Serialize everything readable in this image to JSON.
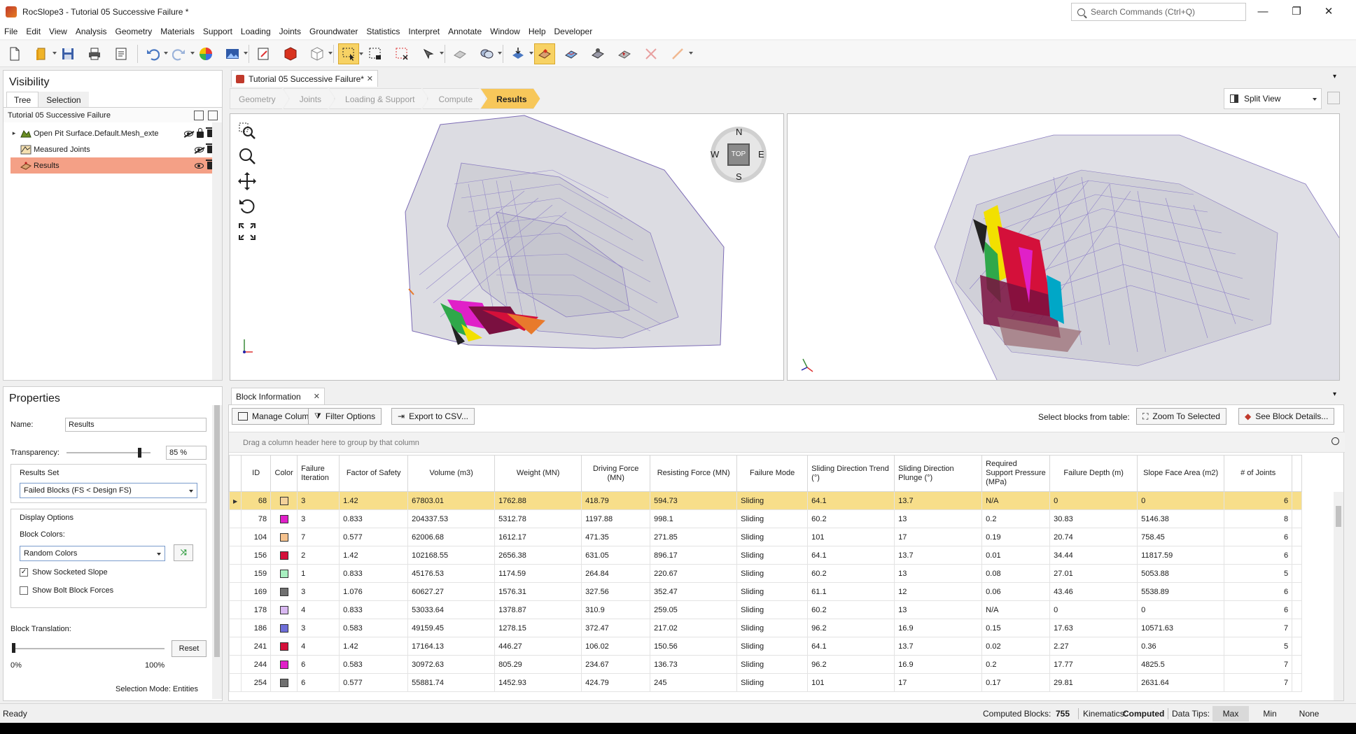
{
  "window": {
    "title": "RocSlope3 - Tutorial 05 Successive Failure *",
    "search_placeholder": "Search Commands (Ctrl+Q)",
    "controls": [
      "—",
      "❐",
      "✕"
    ]
  },
  "menu": [
    "File",
    "Edit",
    "View",
    "Analysis",
    "Geometry",
    "Materials",
    "Support",
    "Loading",
    "Joints",
    "Groundwater",
    "Statistics",
    "Interpret",
    "Annotate",
    "Window",
    "Help",
    "Developer"
  ],
  "toolbar_icons": [
    "new-file-icon",
    "open-folder-icon",
    "save-icon",
    "print-icon",
    "report-icon",
    "undo-icon",
    "redo-icon",
    "color-wheel-icon",
    "image-export-icon",
    "select-tool-icon",
    "block-view-icon",
    "wireframe-icon",
    "select-region-icon",
    "lock-select-icon",
    "deselect-icon",
    "pick-icon",
    "surface-icon",
    "joint-planes-icon",
    "import-icon",
    "block-results-icon",
    "stereonet-icon",
    "analysis-icon",
    "failure-icon",
    "delete-icon",
    "measure-icon"
  ],
  "visibility": {
    "title": "Visibility",
    "tabs": [
      "Tree",
      "Selection"
    ],
    "root": "Tutorial 05 Successive Failure",
    "items": [
      {
        "label": "Open Pit Surface.Default.Mesh_exte",
        "visible": false,
        "locked": true,
        "selected": false
      },
      {
        "label": "Measured Joints",
        "visible": false,
        "locked": false,
        "selected": false
      },
      {
        "label": "Results",
        "visible": true,
        "locked": false,
        "selected": true
      }
    ]
  },
  "properties": {
    "title": "Properties",
    "name_label": "Name:",
    "name_value": "Results",
    "transparency_label": "Transparency:",
    "transparency_value": "85 %",
    "transparency_fraction": 0.85,
    "results_set_label": "Results Set",
    "results_set_value": "Failed Blocks (FS < Design FS)",
    "display_options_label": "Display Options",
    "block_colors_label": "Block Colors:",
    "block_colors_value": "Random Colors",
    "show_socketed_slope": "Show Socketed Slope",
    "show_socketed_slope_checked": true,
    "show_bolt_forces": "Show Bolt Block Forces",
    "show_bolt_forces_checked": false,
    "block_translation_label": "Block Translation:",
    "reset_label": "Reset",
    "min_label": "0%",
    "max_label": "100%",
    "selection_mode": "Selection Mode:  Entities"
  },
  "document": {
    "tab_title": "Tutorial 05 Successive Failure*",
    "workflow": [
      "Geometry",
      "Joints",
      "Loading & Support",
      "Compute",
      "Results"
    ],
    "active_step": "Results",
    "view_mode": "Split View"
  },
  "compass": {
    "n": "N",
    "s": "S",
    "e": "E",
    "w": "W",
    "center": "TOP"
  },
  "block_info": {
    "tab_title": "Block Information",
    "buttons": {
      "manage_columns": "Manage Columns",
      "filter_options": "Filter Options",
      "export_csv": "Export to CSV...",
      "zoom_selected": "Zoom To Selected",
      "see_details": "See Block Details..."
    },
    "select_label": "Select blocks from table:",
    "group_hint": "Drag a column header here to group by that column",
    "columns": [
      "ID",
      "Color",
      "Failure Iteration",
      "Factor of Safety",
      "Volume (m3)",
      "Weight (MN)",
      "Driving Force (MN)",
      "Resisting Force (MN)",
      "Failure Mode",
      "Sliding Direction Trend (°)",
      "Sliding Direction Plunge (°)",
      "Required Support Pressure (MPa)",
      "Failure Depth (m)",
      "Slope Face Area (m2)",
      "# of Joints"
    ],
    "rows": [
      {
        "id": "68",
        "color": "#f3d19a",
        "iter": "3",
        "fs": "1.42",
        "volume": "67803.01",
        "weight": "1762.88",
        "driving": "418.79",
        "resisting": "594.73",
        "mode": "Sliding",
        "trend": "64.1",
        "plunge": "13.7",
        "pressure": "N/A",
        "depth": "0",
        "area": "0",
        "joints": "6"
      },
      {
        "id": "78",
        "color": "#e020c8",
        "iter": "3",
        "fs": "0.833",
        "volume": "204337.53",
        "weight": "5312.78",
        "driving": "1197.88",
        "resisting": "998.1",
        "mode": "Sliding",
        "trend": "60.2",
        "plunge": "13",
        "pressure": "0.2",
        "depth": "30.83",
        "area": "5146.38",
        "joints": "8"
      },
      {
        "id": "104",
        "color": "#f5c28e",
        "iter": "7",
        "fs": "0.577",
        "volume": "62006.68",
        "weight": "1612.17",
        "driving": "471.35",
        "resisting": "271.85",
        "mode": "Sliding",
        "trend": "101",
        "plunge": "17",
        "pressure": "0.19",
        "depth": "20.74",
        "area": "758.45",
        "joints": "6"
      },
      {
        "id": "156",
        "color": "#d4103a",
        "iter": "2",
        "fs": "1.42",
        "volume": "102168.55",
        "weight": "2656.38",
        "driving": "631.05",
        "resisting": "896.17",
        "mode": "Sliding",
        "trend": "64.1",
        "plunge": "13.7",
        "pressure": "0.01",
        "depth": "34.44",
        "area": "11817.59",
        "joints": "6"
      },
      {
        "id": "159",
        "color": "#a8f0c0",
        "iter": "1",
        "fs": "0.833",
        "volume": "45176.53",
        "weight": "1174.59",
        "driving": "264.84",
        "resisting": "220.67",
        "mode": "Sliding",
        "trend": "60.2",
        "plunge": "13",
        "pressure": "0.08",
        "depth": "27.01",
        "area": "5053.88",
        "joints": "5"
      },
      {
        "id": "169",
        "color": "#707070",
        "iter": "3",
        "fs": "1.076",
        "volume": "60627.27",
        "weight": "1576.31",
        "driving": "327.56",
        "resisting": "352.47",
        "mode": "Sliding",
        "trend": "61.1",
        "plunge": "12",
        "pressure": "0.06",
        "depth": "43.46",
        "area": "5538.89",
        "joints": "6"
      },
      {
        "id": "178",
        "color": "#d9b8f2",
        "iter": "4",
        "fs": "0.833",
        "volume": "53033.64",
        "weight": "1378.87",
        "driving": "310.9",
        "resisting": "259.05",
        "mode": "Sliding",
        "trend": "60.2",
        "plunge": "13",
        "pressure": "N/A",
        "depth": "0",
        "area": "0",
        "joints": "6"
      },
      {
        "id": "186",
        "color": "#6e6ed8",
        "iter": "3",
        "fs": "0.583",
        "volume": "49159.45",
        "weight": "1278.15",
        "driving": "372.47",
        "resisting": "217.02",
        "mode": "Sliding",
        "trend": "96.2",
        "plunge": "16.9",
        "pressure": "0.15",
        "depth": "17.63",
        "area": "10571.63",
        "joints": "7"
      },
      {
        "id": "241",
        "color": "#d4103a",
        "iter": "4",
        "fs": "1.42",
        "volume": "17164.13",
        "weight": "446.27",
        "driving": "106.02",
        "resisting": "150.56",
        "mode": "Sliding",
        "trend": "64.1",
        "plunge": "13.7",
        "pressure": "0.02",
        "depth": "2.27",
        "area": "0.36",
        "joints": "5"
      },
      {
        "id": "244",
        "color": "#e020c8",
        "iter": "6",
        "fs": "0.583",
        "volume": "30972.63",
        "weight": "805.29",
        "driving": "234.67",
        "resisting": "136.73",
        "mode": "Sliding",
        "trend": "96.2",
        "plunge": "16.9",
        "pressure": "0.2",
        "depth": "17.77",
        "area": "4825.5",
        "joints": "7"
      },
      {
        "id": "254",
        "color": "#707070",
        "iter": "6",
        "fs": "0.577",
        "volume": "55881.74",
        "weight": "1452.93",
        "driving": "424.79",
        "resisting": "245",
        "mode": "Sliding",
        "trend": "101",
        "plunge": "17",
        "pressure": "0.17",
        "depth": "29.81",
        "area": "2631.64",
        "joints": "7"
      }
    ]
  },
  "status": {
    "ready": "Ready",
    "computed_label": "Computed Blocks:",
    "computed_value": "755",
    "kinematics_label": "Kinematics:",
    "kinematics_value": "Computed",
    "datatips_label": "Data Tips:",
    "datatips_options": [
      "Max",
      "Min",
      "None"
    ],
    "datatips_selected": "Max"
  }
}
